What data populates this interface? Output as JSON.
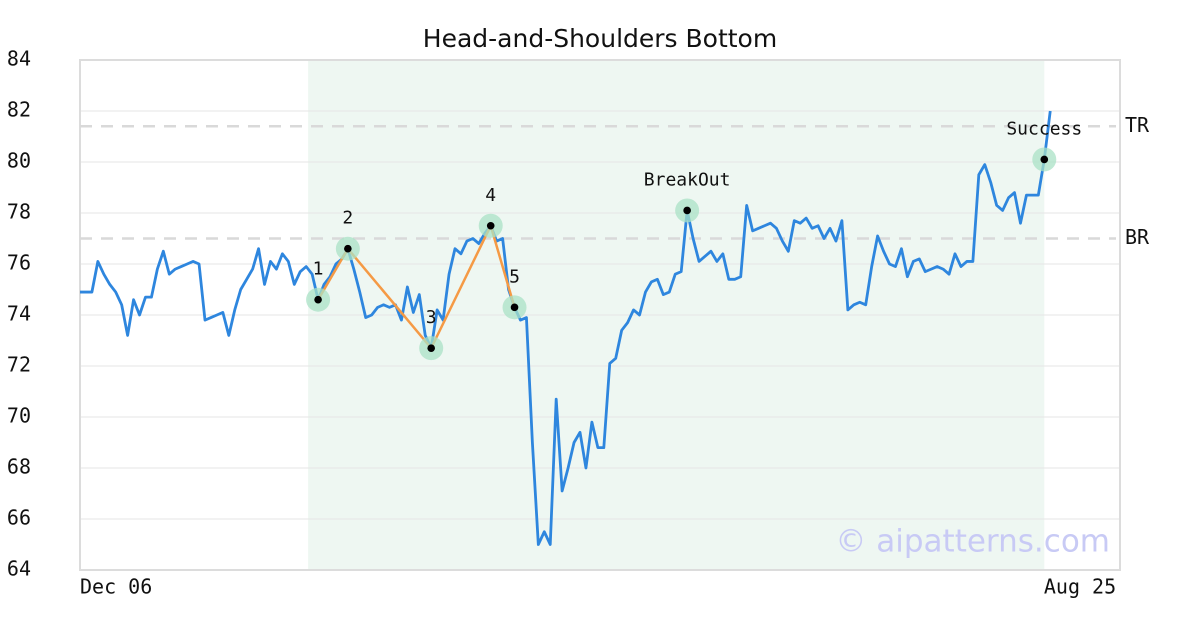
{
  "chart_data": {
    "type": "line",
    "title": "Head-and-Shoulders Bottom",
    "color": "#2e86de",
    "ylim": [
      64,
      84
    ],
    "yticks": [
      64,
      66,
      68,
      70,
      72,
      74,
      76,
      78,
      80,
      82,
      84
    ],
    "grid": true,
    "categories": [
      "Dec 06",
      null,
      null,
      null,
      null,
      null,
      null,
      null,
      null,
      null,
      null,
      null,
      null,
      null,
      null,
      null,
      null,
      null,
      null,
      null,
      null,
      null,
      null,
      null,
      null,
      null,
      null,
      null,
      null,
      null,
      null,
      null,
      null,
      null,
      null,
      null,
      null,
      null,
      null,
      null,
      null,
      null,
      null,
      null,
      null,
      null,
      null,
      null,
      null,
      null,
      null,
      null,
      null,
      null,
      null,
      null,
      null,
      null,
      null,
      null,
      null,
      null,
      null,
      null,
      null,
      null,
      null,
      null,
      null,
      null,
      null,
      null,
      null,
      null,
      null,
      null,
      null,
      null,
      null,
      null,
      null,
      null,
      null,
      null,
      null,
      null,
      null,
      null,
      null,
      null,
      null,
      null,
      null,
      null,
      null,
      null,
      null,
      null,
      null,
      null,
      null,
      null,
      null,
      null,
      null,
      null,
      null,
      null,
      null,
      null,
      null,
      null,
      null,
      null,
      null,
      null,
      null,
      null,
      null,
      null,
      null,
      null,
      null,
      null,
      null,
      null,
      null,
      null,
      null,
      null,
      null,
      null,
      null,
      null,
      null,
      null,
      null,
      null,
      null,
      null,
      null,
      null,
      null,
      null,
      null,
      null,
      null,
      null,
      null,
      null,
      null,
      null,
      null,
      null,
      null,
      null,
      null,
      null,
      null,
      null,
      null,
      null,
      null,
      null,
      null,
      null,
      null,
      null,
      "Aug 25"
    ],
    "values": [
      74.9,
      74.9,
      74.9,
      76.1,
      75.6,
      75.2,
      74.9,
      74.4,
      73.2,
      74.6,
      74.0,
      74.7,
      74.7,
      75.8,
      76.5,
      75.6,
      75.8,
      75.9,
      76.0,
      76.1,
      76.0,
      73.8,
      73.9,
      74.0,
      74.1,
      73.2,
      74.2,
      75.0,
      75.4,
      75.8,
      76.6,
      75.2,
      76.1,
      75.8,
      76.4,
      76.1,
      75.2,
      75.7,
      75.9,
      75.6,
      74.6,
      75.2,
      75.5,
      76.0,
      76.2,
      76.6,
      75.8,
      74.9,
      73.9,
      74.0,
      74.3,
      74.4,
      74.3,
      74.4,
      73.8,
      75.1,
      74.1,
      74.8,
      73.2,
      72.7,
      74.2,
      73.8,
      75.6,
      76.6,
      76.4,
      76.9,
      77.0,
      76.8,
      77.2,
      77.5,
      76.9,
      77.0,
      75.0,
      74.3,
      73.8,
      73.9,
      69.0,
      65.0,
      65.5,
      65.0,
      70.7,
      67.1,
      68.0,
      69.0,
      69.4,
      68.0,
      69.8,
      68.8,
      68.8,
      72.1,
      72.3,
      73.4,
      73.7,
      74.2,
      74.0,
      74.9,
      75.3,
      75.4,
      74.8,
      74.9,
      75.6,
      75.7,
      78.1,
      77.0,
      76.1,
      76.3,
      76.5,
      76.1,
      76.4,
      75.4,
      75.4,
      75.5,
      78.3,
      77.3,
      77.4,
      77.5,
      77.6,
      77.4,
      76.9,
      76.5,
      77.7,
      77.6,
      77.8,
      77.4,
      77.5,
      77.0,
      77.4,
      76.9,
      77.7,
      74.2,
      74.4,
      74.5,
      74.4,
      75.9,
      77.1,
      76.5,
      76.0,
      75.9,
      76.6,
      75.5,
      76.1,
      76.2,
      75.7,
      75.8,
      75.9,
      75.8,
      75.6,
      76.4,
      75.9,
      76.1,
      76.1,
      79.5,
      79.9,
      79.2,
      78.3,
      78.1,
      78.6,
      78.8,
      77.6,
      78.7,
      78.7,
      78.7,
      80.1,
      82.0,
      null,
      null,
      null,
      null,
      null
    ],
    "pattern": {
      "labels": [
        "1",
        "2",
        "3",
        "4",
        "5"
      ],
      "values": [
        74.6,
        76.6,
        72.7,
        77.5,
        74.3
      ],
      "index": [
        40,
        45,
        59,
        69,
        73
      ],
      "color": "#f59a45"
    },
    "signals": {
      "labels": [
        "BreakOut",
        "Success"
      ],
      "values": [
        78.1,
        80.1
      ],
      "index": [
        102,
        162
      ]
    },
    "levels": {
      "labels": [
        "TR",
        "BR"
      ],
      "values": [
        81.4,
        77.0
      ]
    },
    "watermark": "© aipatterns.com"
  }
}
